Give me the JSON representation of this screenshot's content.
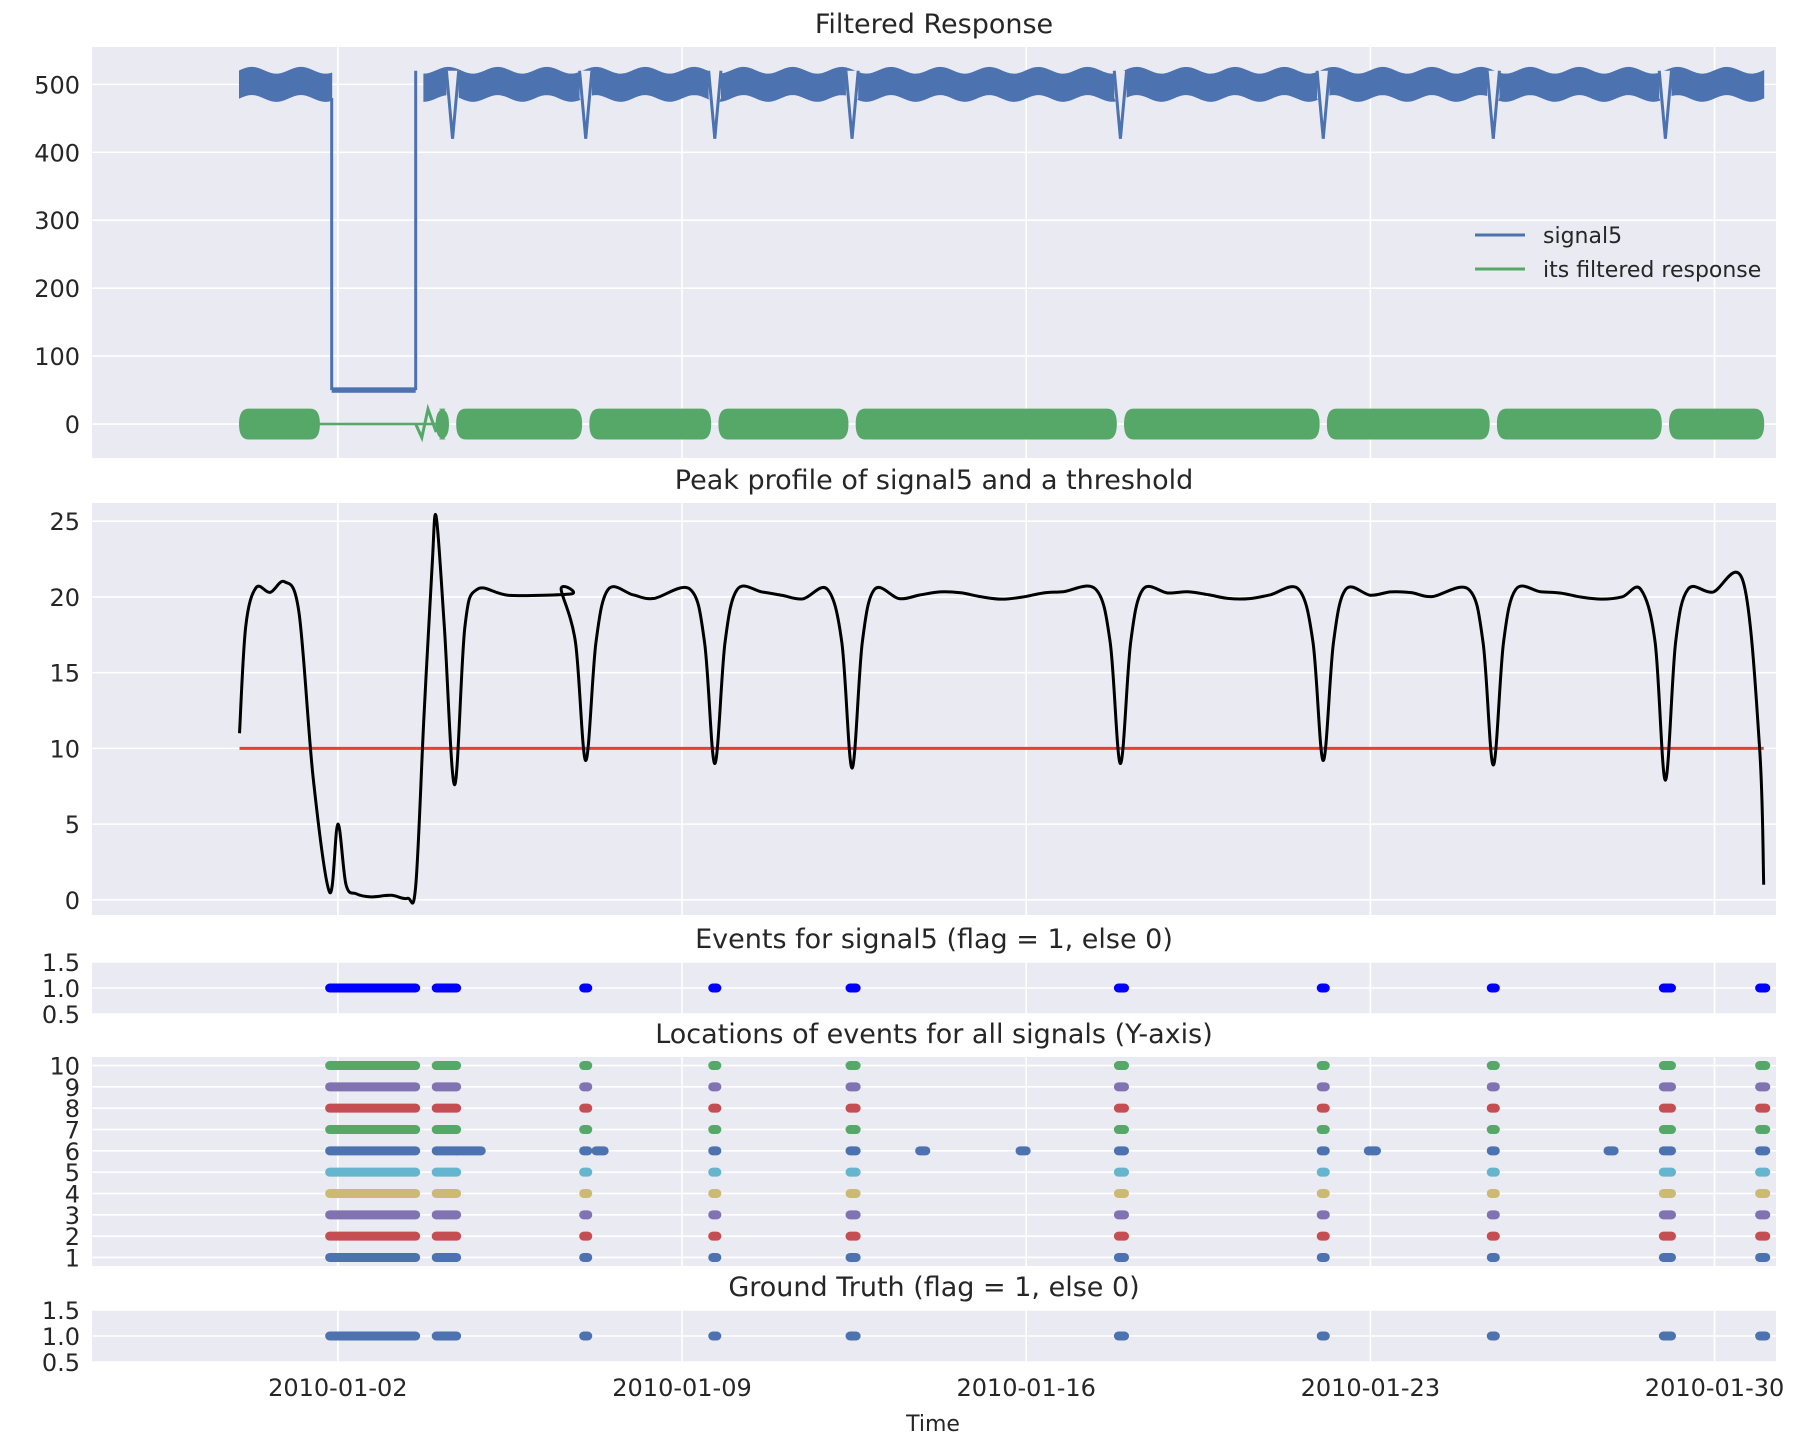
{
  "colors": {
    "axes_bg": "#EAEAF2",
    "grid": "#FFFFFF",
    "blue": "#4C72B0",
    "green": "#55A868",
    "red": "#C44E52",
    "purple": "#8172B2",
    "gold": "#CCB974",
    "cyan": "#64B5CD",
    "black": "#000000",
    "threshold": "#E8402B",
    "bright_blue": "#0000FF"
  },
  "x_axis": {
    "label": "Time",
    "range": [
      "2009-12-28",
      "2010-01-31T06:00"
    ],
    "ticks": [
      "2010-01-02",
      "2010-01-09",
      "2010-01-16",
      "2010-01-23",
      "2010-01-30"
    ]
  },
  "dip_dates": [
    "2010-01-04T08:00",
    "2010-01-07T01:00",
    "2010-01-09T16:00",
    "2010-01-12T11:00",
    "2010-01-17T22:00",
    "2010-01-22T01:00",
    "2010-01-25T12:00",
    "2010-01-29T00:00"
  ],
  "chart_data": [
    {
      "type": "line",
      "title": "Filtered Response",
      "ylim": [
        -50,
        555
      ],
      "yticks": [
        0,
        100,
        200,
        300,
        400,
        500
      ],
      "grid": true,
      "legend_position": "right",
      "legend": [
        "signal5",
        "its filtered response"
      ],
      "series": [
        {
          "name": "signal5",
          "color": "blue",
          "normal_band": [
            480,
            520
          ],
          "dropout": {
            "start": "2010-01-01T21:00",
            "end": "2010-01-03T14:00",
            "level": 50
          },
          "start": "2009-12-31T00:00",
          "end": "2010-01-31T00:00",
          "dip_min": 420
        },
        {
          "name": "its filtered response",
          "color": "green",
          "band": [
            -22,
            22
          ],
          "quiet_value": 0
        }
      ]
    },
    {
      "type": "line",
      "title": "Peak profile of signal5 and a threshold",
      "ylim": [
        -1,
        26.2
      ],
      "yticks": [
        0,
        5,
        10,
        15,
        20,
        25
      ],
      "grid": true,
      "series": [
        {
          "name": "peak profile",
          "color": "black",
          "points": [
            [
              "2009-12-31T00:00",
              11
            ],
            [
              "2009-12-31T03:00",
              18
            ],
            [
              "2009-12-31T08:00",
              20.6
            ],
            [
              "2009-12-31T15:00",
              20.3
            ],
            [
              "2009-12-31T22:00",
              21
            ],
            [
              "2010-01-01T05:00",
              19
            ],
            [
              "2010-01-01T12:00",
              8
            ],
            [
              "2010-01-01T20:00",
              0.5
            ],
            [
              "2010-01-02T00:00",
              5
            ],
            [
              "2010-01-02T04:00",
              1
            ],
            [
              "2010-01-02T09:00",
              0.4
            ],
            [
              "2010-01-02T16:00",
              0.2
            ],
            [
              "2010-01-03T02:00",
              0.3
            ],
            [
              "2010-01-03T10:00",
              0.1
            ],
            [
              "2010-01-03T14:00",
              0.9
            ],
            [
              "2010-01-03T18:00",
              12
            ],
            [
              "2010-01-03T22:00",
              22
            ],
            [
              "2010-01-04T00:00",
              25.3
            ],
            [
              "2010-01-04T04:00",
              18
            ],
            [
              "2010-01-04T09:00",
              7.6
            ],
            [
              "2010-01-04T14:00",
              18
            ],
            [
              "2010-01-04T20:00",
              20.5
            ],
            [
              "2010-01-05T12:00",
              20.1
            ],
            [
              "2010-01-06T18:00",
              20.2
            ]
          ],
          "baseline": 20.1,
          "end_points": [
            [
              "2010-01-30T14:00",
              21
            ],
            [
              "2010-01-30T22:00",
              10
            ],
            [
              "2010-01-31T00:00",
              1
            ]
          ],
          "dip_values": [
            7.6,
            9.2,
            9,
            8.7,
            9,
            9.2,
            8.9,
            7.9
          ]
        },
        {
          "name": "threshold",
          "color": "threshold",
          "points": [
            [
              "2009-12-31T00:00",
              10
            ],
            [
              "2010-01-31T00:00",
              10
            ]
          ]
        }
      ]
    },
    {
      "type": "scatter",
      "title": "Events for signal5 (flag = 1, else 0)",
      "ylim": [
        0.5,
        1.5
      ],
      "yticks": [
        "0.5",
        "1.0",
        "1.5"
      ],
      "grid": true,
      "color": "bright_blue",
      "y": 1,
      "event_segments": [
        [
          "2010-01-01T20:00",
          "2010-01-03T14:00"
        ],
        [
          "2010-01-04T00:00",
          "2010-01-04T10:00"
        ],
        [
          "2010-01-07T00:00",
          "2010-01-07T02:00"
        ],
        [
          "2010-01-09T15:00",
          "2010-01-09T17:00"
        ],
        [
          "2010-01-12T10:00",
          "2010-01-12T13:00"
        ],
        [
          "2010-01-17T21:00",
          "2010-01-18T00:00"
        ],
        [
          "2010-01-22T00:00",
          "2010-01-22T02:00"
        ],
        [
          "2010-01-25T11:00",
          "2010-01-25T13:00"
        ],
        [
          "2010-01-28T23:00",
          "2010-01-29T03:00"
        ],
        [
          "2010-01-30T22:00",
          "2010-01-31T01:00"
        ]
      ]
    },
    {
      "type": "scatter",
      "title": "Locations of events for all signals (Y-axis)",
      "ylim": [
        0.6,
        10.4
      ],
      "yticks": [
        "1",
        "2",
        "3",
        "4",
        "5",
        "6",
        "7",
        "8",
        "9",
        "10"
      ],
      "grid": true,
      "signal_colors": [
        "blue",
        "red",
        "purple",
        "gold",
        "cyan",
        "blue",
        "green",
        "red",
        "purple",
        "green"
      ],
      "common_segments": [
        [
          "2010-01-01T20:00",
          "2010-01-03T14:00"
        ],
        [
          "2010-01-04T00:00",
          "2010-01-04T10:00"
        ],
        [
          "2010-01-07T00:00",
          "2010-01-07T02:00"
        ],
        [
          "2010-01-09T15:00",
          "2010-01-09T17:00"
        ],
        [
          "2010-01-12T10:00",
          "2010-01-12T13:00"
        ],
        [
          "2010-01-17T21:00",
          "2010-01-18T00:00"
        ],
        [
          "2010-01-22T00:00",
          "2010-01-22T02:00"
        ],
        [
          "2010-01-25T11:00",
          "2010-01-25T13:00"
        ],
        [
          "2010-01-28T23:00",
          "2010-01-29T03:00"
        ],
        [
          "2010-01-30T22:00",
          "2010-01-31T01:00"
        ]
      ],
      "signal6_extra_segments": [
        [
          "2010-01-04T10:00",
          "2010-01-04T22:00"
        ],
        [
          "2010-01-07T06:00",
          "2010-01-07T10:00"
        ],
        [
          "2010-01-13T20:00",
          "2010-01-13T23:00"
        ],
        [
          "2010-01-15T21:00",
          "2010-01-16T00:00"
        ],
        [
          "2010-01-22T23:00",
          "2010-01-23T03:00"
        ],
        [
          "2010-01-27T20:00",
          "2010-01-27T23:00"
        ]
      ]
    },
    {
      "type": "scatter",
      "title": "Ground Truth (flag = 1, else 0)",
      "ylim": [
        0.5,
        1.5
      ],
      "yticks": [
        "0.5",
        "1.0",
        "1.5"
      ],
      "grid": true,
      "color": "blue",
      "y": 1,
      "event_segments": [
        [
          "2010-01-01T20:00",
          "2010-01-03T14:00"
        ],
        [
          "2010-01-04T00:00",
          "2010-01-04T10:00"
        ],
        [
          "2010-01-07T00:00",
          "2010-01-07T02:00"
        ],
        [
          "2010-01-09T15:00",
          "2010-01-09T17:00"
        ],
        [
          "2010-01-12T10:00",
          "2010-01-12T13:00"
        ],
        [
          "2010-01-17T21:00",
          "2010-01-18T00:00"
        ],
        [
          "2010-01-22T00:00",
          "2010-01-22T02:00"
        ],
        [
          "2010-01-25T11:00",
          "2010-01-25T13:00"
        ],
        [
          "2010-01-28T23:00",
          "2010-01-29T03:00"
        ],
        [
          "2010-01-30T22:00",
          "2010-01-31T01:00"
        ]
      ]
    }
  ]
}
